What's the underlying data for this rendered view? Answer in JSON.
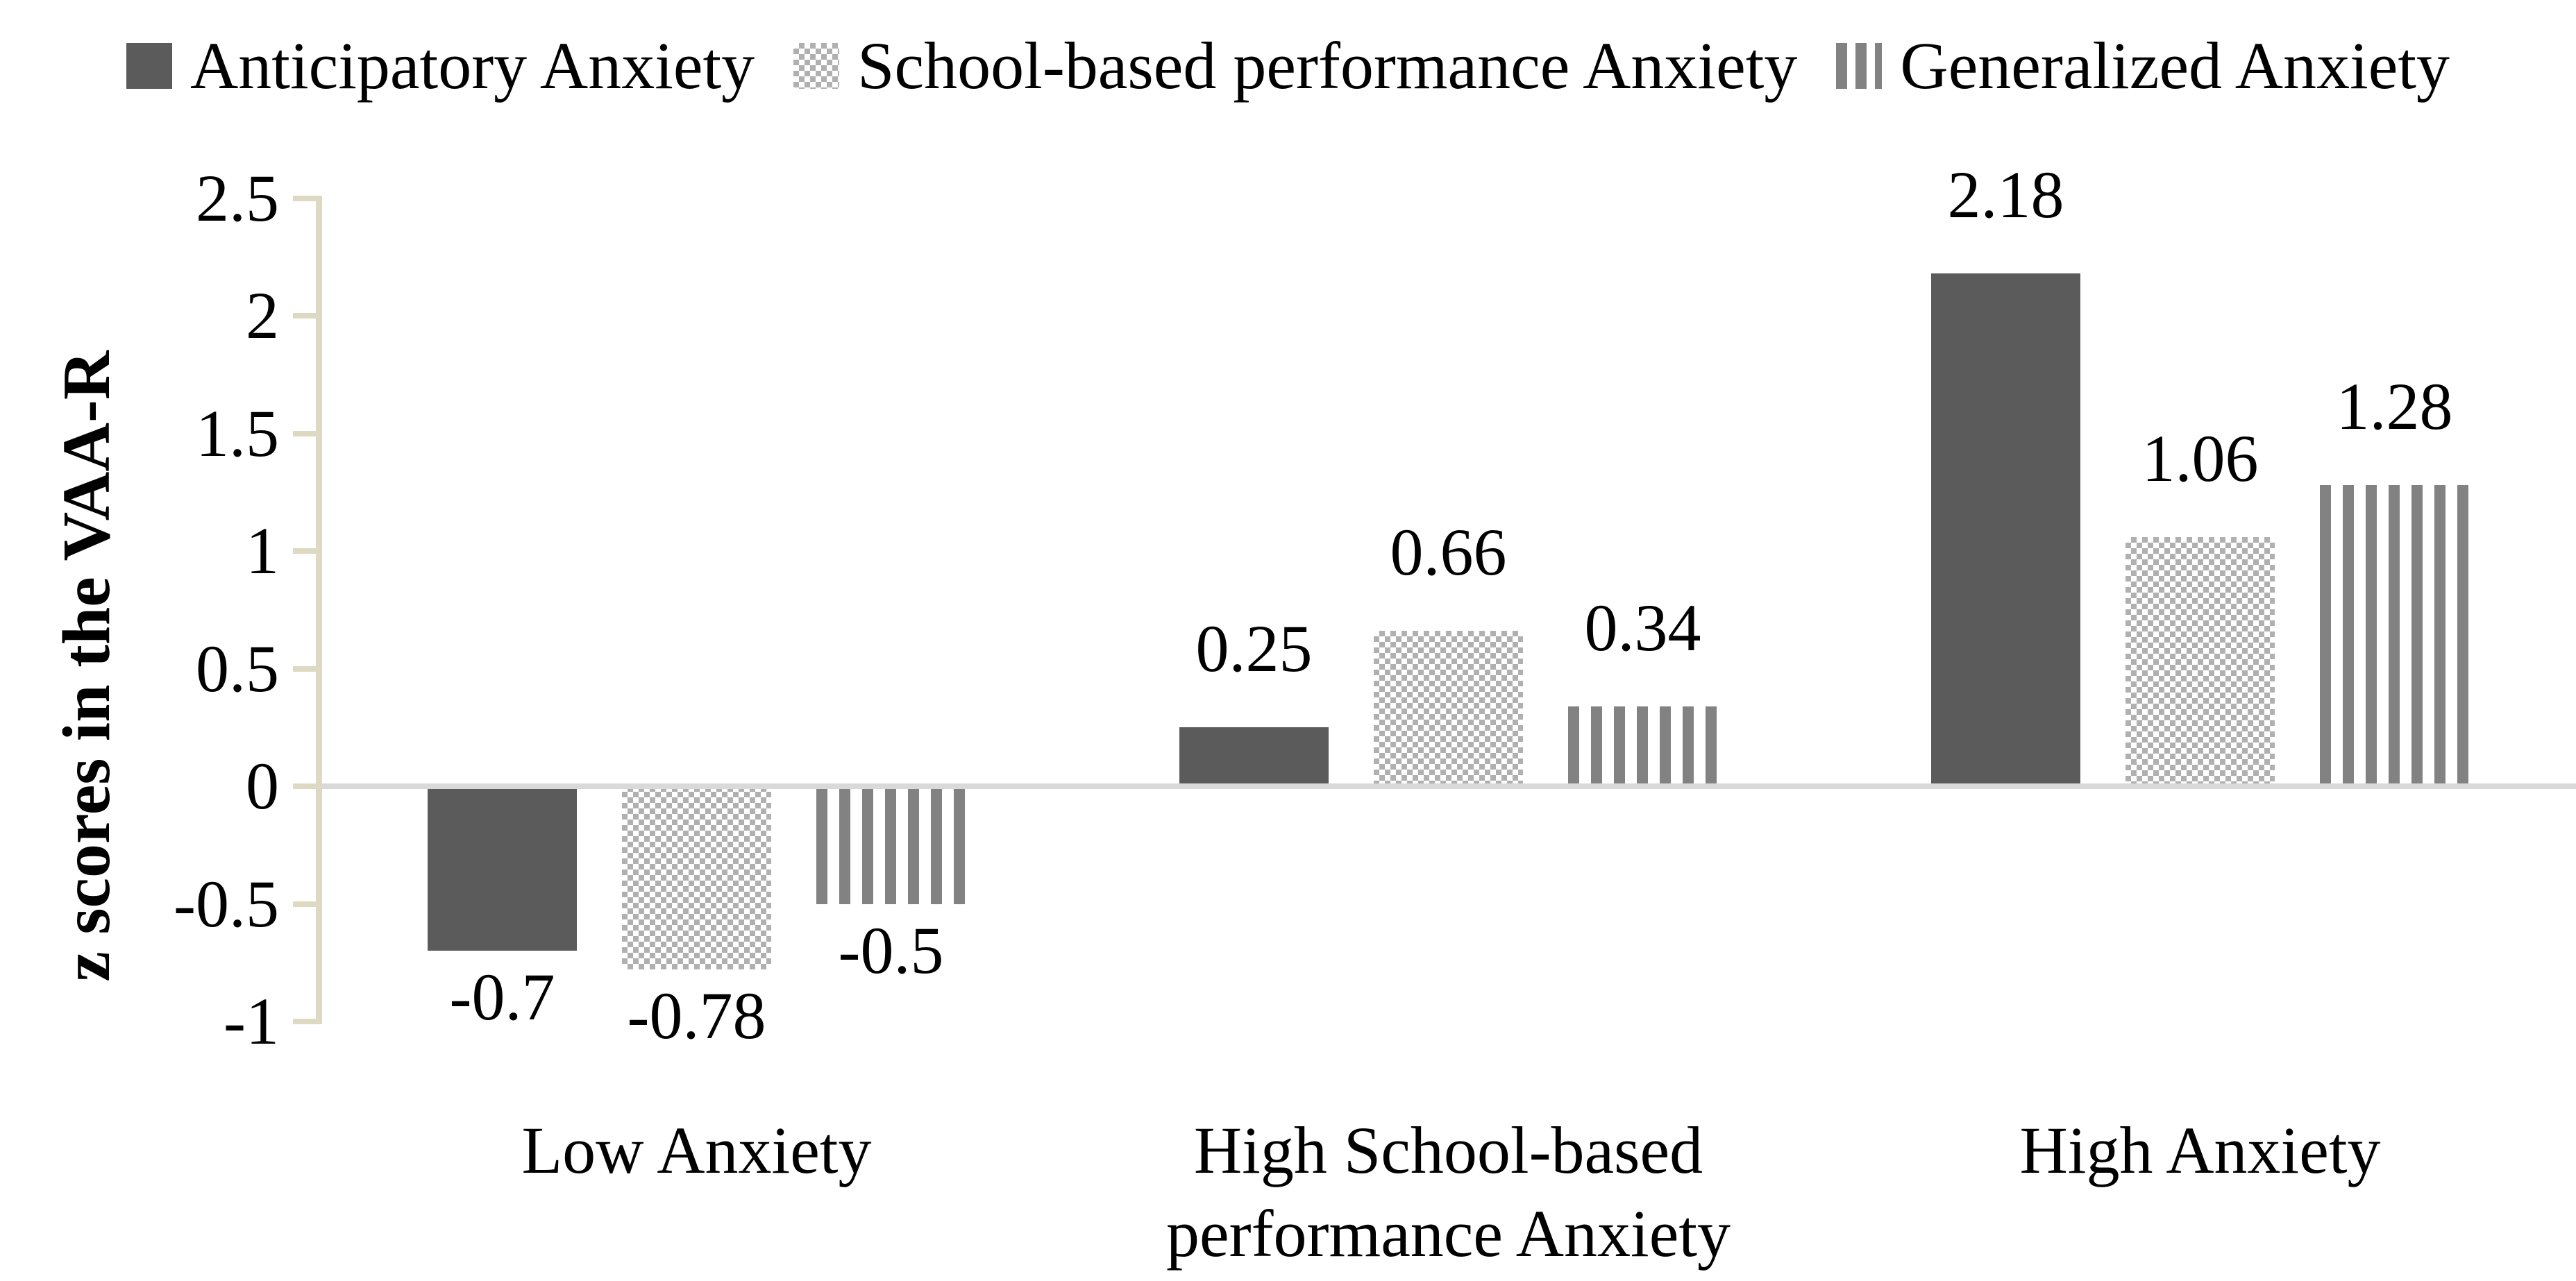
{
  "chart_data": {
    "type": "bar",
    "title": "",
    "xlabel": "",
    "ylabel": "z scores in the VAA-R",
    "categories": [
      "Low Anxiety",
      "High School-based performance Anxiety",
      "High Anxiety"
    ],
    "category_lines": [
      [
        "Low Anxiety"
      ],
      [
        "High School-based",
        "performance Anxiety"
      ],
      [
        "High Anxiety"
      ]
    ],
    "series": [
      {
        "name": "Anticipatory Anxiety",
        "pattern": "solid",
        "color": "#5b5b5b",
        "values": [
          -0.7,
          0.25,
          2.18
        ],
        "value_labels": [
          "-0.7",
          "0.25",
          "2.18"
        ]
      },
      {
        "name": "School-based performance Anxiety",
        "pattern": "checker",
        "color": "#b0b0b0",
        "values": [
          -0.78,
          0.66,
          1.06
        ],
        "value_labels": [
          "-0.78",
          "0.66",
          "1.06"
        ]
      },
      {
        "name": "Generalized Anxiety",
        "pattern": "vstripes",
        "color": "#828282",
        "values": [
          -0.5,
          0.34,
          1.28
        ],
        "value_labels": [
          "-0.5",
          "0.34",
          "1.28"
        ]
      }
    ],
    "yticks": [
      2.5,
      2,
      1.5,
      1,
      0.5,
      0,
      -0.5,
      -1
    ],
    "ytick_labels": [
      "2.5",
      "2",
      "1.5",
      "1",
      "0.5",
      "0",
      "-0.5",
      "-1"
    ],
    "ylim": [
      -1,
      2.5
    ],
    "legend_position": "top",
    "grid": false,
    "colors": {
      "axis_line": "#ded9c3",
      "zero_line": "#d9d9d9",
      "text": "#000000",
      "background": "#ffffff"
    }
  }
}
